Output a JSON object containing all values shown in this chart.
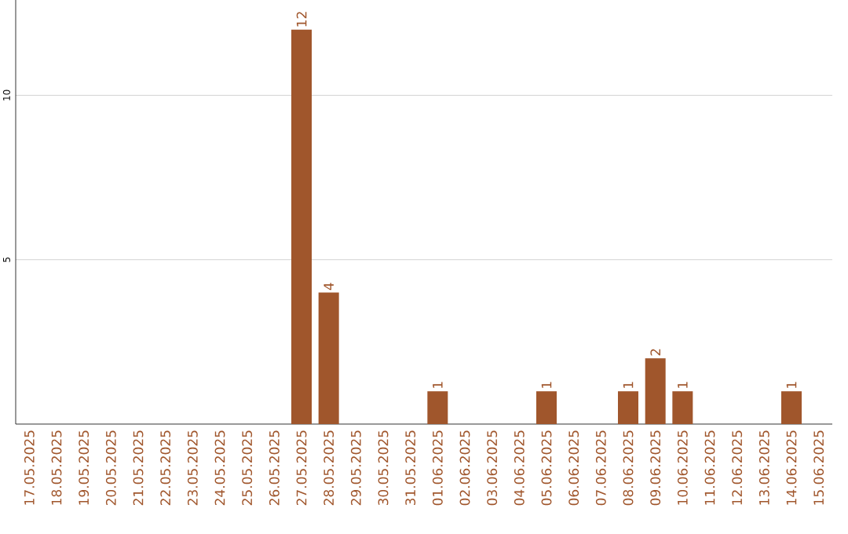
{
  "chart_data": {
    "type": "bar",
    "categories": [
      "17.05.2025",
      "18.05.2025",
      "19.05.2025",
      "20.05.2025",
      "21.05.2025",
      "22.05.2025",
      "23.05.2025",
      "24.05.2025",
      "25.05.2025",
      "26.05.2025",
      "27.05.2025",
      "28.05.2025",
      "29.05.2025",
      "30.05.2025",
      "31.05.2025",
      "01.06.2025",
      "02.06.2025",
      "03.06.2025",
      "04.06.2025",
      "05.06.2025",
      "06.06.2025",
      "07.06.2025",
      "08.06.2025",
      "09.06.2025",
      "10.06.2025",
      "11.06.2025",
      "12.06.2025",
      "13.06.2025",
      "14.06.2025",
      "15.06.2025"
    ],
    "values": [
      0,
      0,
      0,
      0,
      0,
      0,
      0,
      0,
      0,
      0,
      12,
      4,
      0,
      0,
      0,
      1,
      0,
      0,
      0,
      1,
      0,
      0,
      1,
      2,
      1,
      0,
      0,
      0,
      1,
      0
    ],
    "value_labels": [
      null,
      null,
      null,
      null,
      null,
      null,
      null,
      null,
      null,
      null,
      "12",
      "4",
      null,
      null,
      null,
      "1",
      null,
      null,
      null,
      "1",
      null,
      null,
      "1",
      "2",
      "1",
      null,
      null,
      null,
      "1",
      null
    ],
    "color": "#a0562c",
    "ylim": [
      0,
      12.9
    ],
    "yticks": [
      5,
      10
    ],
    "grid": "y"
  }
}
